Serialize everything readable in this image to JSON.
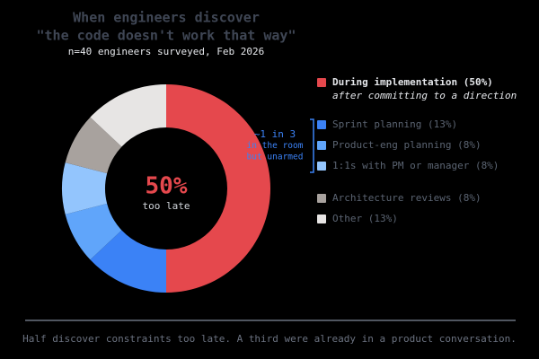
{
  "chart_data": {
    "type": "donut",
    "title": [
      "When engineers discover",
      "\"the code doesn't work that way\""
    ],
    "subtitle": "n=40 engineers surveyed, Feb 2026",
    "center_text": "50%",
    "center_caption": "too late",
    "categories": [
      "During implementation (50%)",
      "Sprint planning (13%)",
      "Product-eng planning (8%)",
      "1:1s with PM or manager (8%)",
      "Architecture reviews (8%)",
      "Other (13%)"
    ],
    "notes": [
      "after committing to a direction",
      null,
      null,
      null,
      null,
      null
    ],
    "values": [
      50,
      13,
      8,
      8,
      8,
      13
    ],
    "colors": [
      "#e5484d",
      "#3b82f6",
      "#60a5fa",
      "#93c5fd",
      "#a8a29e",
      "#e7e5e4"
    ],
    "annotation": [
      "~1 in 3",
      "in the room",
      "but unarmed"
    ],
    "footnote": "Half discover constraints too late. A third were already in a product conversation."
  }
}
